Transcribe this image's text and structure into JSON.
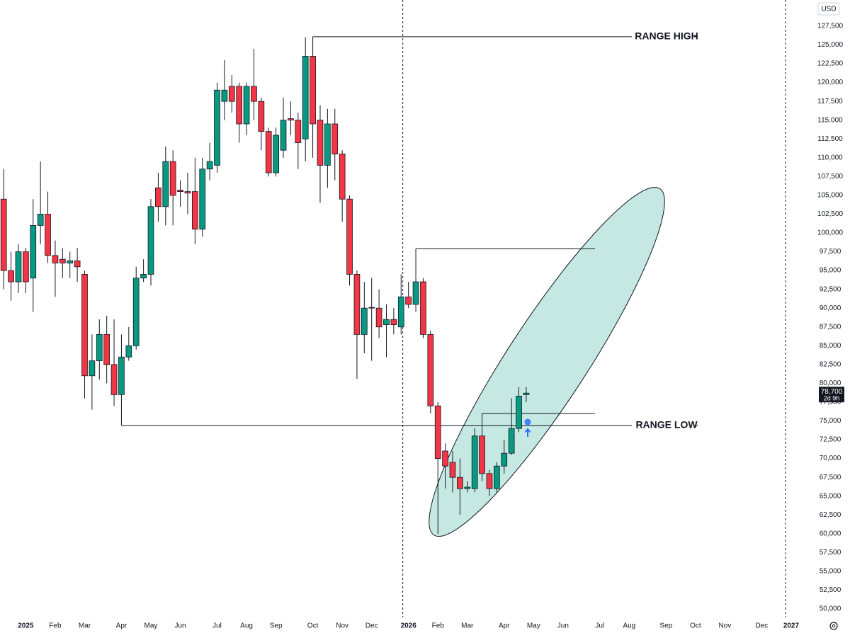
{
  "chart_data": {
    "type": "candlestick",
    "currency": "USD",
    "x": [
      -3,
      -2,
      -1,
      0,
      1,
      2,
      3,
      4,
      5,
      6,
      7,
      8,
      9,
      10,
      11,
      12,
      13,
      14,
      15,
      16,
      17,
      18,
      19,
      20,
      21,
      22,
      23,
      24,
      25,
      26,
      27,
      28,
      29,
      30,
      31,
      32,
      33,
      34,
      35,
      36,
      37,
      38,
      39,
      40,
      41,
      42,
      43,
      44,
      45,
      46,
      47,
      48,
      49,
      50,
      51,
      52,
      53,
      54,
      55,
      56,
      57,
      58,
      59,
      60,
      61,
      62,
      63,
      64,
      65,
      66,
      67,
      68
    ],
    "open": [
      104500,
      95000,
      93500,
      97500,
      94000,
      101000,
      102500,
      97000,
      96500,
      96000,
      96300,
      94500,
      81000,
      83000,
      86500,
      82500,
      78500,
      83500,
      85000,
      94000,
      94500,
      106000,
      103500,
      109500,
      105700,
      105500,
      105500,
      100500,
      108500,
      109000,
      117500,
      119500,
      119500,
      114500,
      119500,
      117500,
      113500,
      108000,
      111000,
      115200,
      115000,
      112500,
      123500,
      115000,
      109000,
      114500,
      110500,
      104500,
      94500,
      86500,
      90100,
      90000,
      87800,
      88500,
      87500,
      91500,
      90500,
      93500,
      86500,
      77000,
      71000,
      69500,
      67500,
      66000,
      66000,
      73000,
      68000,
      66000,
      69000,
      70700,
      74000,
      78500
    ],
    "high": [
      108500,
      97500,
      98500,
      98000,
      104500,
      109500,
      105500,
      99000,
      98000,
      97500,
      98000,
      95000,
      86500,
      88500,
      89000,
      88500,
      86500,
      87500,
      95500,
      96500,
      104500,
      108000,
      111500,
      111000,
      107000,
      108000,
      110000,
      110000,
      112000,
      120000,
      123000,
      121000,
      120000,
      120000,
      124500,
      118000,
      114000,
      114000,
      118000,
      117500,
      116000,
      126000,
      126100,
      117000,
      116500,
      116500,
      111000,
      105000,
      95000,
      93500,
      94000,
      92500,
      90500,
      90000,
      94500,
      93500,
      97900,
      94000,
      87000,
      77500,
      72000,
      71000,
      70000,
      67000,
      74000,
      76000,
      68500,
      69500,
      72500,
      78000,
      79500,
      79500
    ],
    "low": [
      92500,
      91000,
      92000,
      92000,
      89500,
      98500,
      96000,
      91500,
      94000,
      94000,
      93500,
      78000,
      76500,
      80500,
      80000,
      77000,
      74400,
      83000,
      84500,
      93500,
      93000,
      101500,
      101000,
      101000,
      103500,
      102500,
      98500,
      99500,
      107000,
      108000,
      115000,
      116000,
      112000,
      113000,
      115000,
      111000,
      107500,
      107500,
      110000,
      113000,
      108500,
      109500,
      110000,
      104000,
      106000,
      107000,
      101500,
      93000,
      80600,
      84000,
      83000,
      86000,
      83500,
      86500,
      86500,
      90000,
      89500,
      86000,
      76000,
      60000,
      66000,
      65500,
      62500,
      65500,
      65500,
      67000,
      65000,
      65500,
      68000,
      70500,
      73500,
      77500
    ],
    "close": [
      95000,
      93500,
      97500,
      93500,
      101000,
      102500,
      97000,
      96000,
      96000,
      96300,
      95500,
      81000,
      83000,
      86500,
      82500,
      78500,
      83500,
      85000,
      94000,
      94500,
      103500,
      103500,
      109500,
      105000,
      105500,
      105300,
      100500,
      108500,
      109500,
      119000,
      119000,
      117500,
      114500,
      119500,
      117500,
      113500,
      108000,
      113000,
      115000,
      115000,
      112000,
      123500,
      114500,
      109000,
      114500,
      110500,
      104500,
      94500,
      86500,
      90000,
      90000,
      87500,
      88500,
      87800,
      91500,
      90500,
      93500,
      86500,
      77000,
      70000,
      69000,
      67500,
      66000,
      66200,
      73000,
      68000,
      66000,
      69000,
      70700,
      74000,
      78300,
      78700
    ],
    "up_color": "#089981",
    "down_color": "#f23645",
    "xlim": [
      -3.5,
      106.7
    ],
    "xticks": [
      {
        "value": 0,
        "label": "2025"
      },
      {
        "value": 4,
        "label": "Feb"
      },
      {
        "value": 8,
        "label": "Mar"
      },
      {
        "value": 13,
        "label": "Apr"
      },
      {
        "value": 17,
        "label": "May"
      },
      {
        "value": 21,
        "label": "Jun"
      },
      {
        "value": 26,
        "label": "Jul"
      },
      {
        "value": 30,
        "label": "Aug"
      },
      {
        "value": 34,
        "label": "Sep"
      },
      {
        "value": 39,
        "label": "Oct"
      },
      {
        "value": 43,
        "label": "Nov"
      },
      {
        "value": 47,
        "label": "Dec"
      },
      {
        "value": 52,
        "label": "2026"
      },
      {
        "value": 56,
        "label": "Feb"
      },
      {
        "value": 60,
        "label": "Mar"
      },
      {
        "value": 65,
        "label": "Apr"
      },
      {
        "value": 69,
        "label": "May"
      },
      {
        "value": 73,
        "label": "Jun"
      },
      {
        "value": 78,
        "label": "Jul"
      },
      {
        "value": 82,
        "label": "Aug"
      },
      {
        "value": 87,
        "label": "Sep"
      },
      {
        "value": 91,
        "label": "Oct"
      },
      {
        "value": 95,
        "label": "Nov"
      },
      {
        "value": 100,
        "label": "Dec"
      },
      {
        "value": 104,
        "label": "2027"
      }
    ],
    "ylim": [
      48870,
      130980
    ],
    "yticks": [
      {
        "value": 50000,
        "label": "50,000"
      },
      {
        "value": 52500,
        "label": "52,500"
      },
      {
        "value": 55000,
        "label": "55,000"
      },
      {
        "value": 57500,
        "label": "57,500"
      },
      {
        "value": 60000,
        "label": "60,000"
      },
      {
        "value": 62500,
        "label": "62,500"
      },
      {
        "value": 65000,
        "label": "65,000"
      },
      {
        "value": 67500,
        "label": "67,500"
      },
      {
        "value": 70000,
        "label": "70,000"
      },
      {
        "value": 72500,
        "label": "72,500"
      },
      {
        "value": 75000,
        "label": "75,000"
      },
      {
        "value": 77500,
        "label": "77,500"
      },
      {
        "value": 80000,
        "label": "80,000"
      },
      {
        "value": 82500,
        "label": "82,500"
      },
      {
        "value": 85000,
        "label": "85,000"
      },
      {
        "value": 87500,
        "label": "87,500"
      },
      {
        "value": 90000,
        "label": "90,000"
      },
      {
        "value": 92500,
        "label": "92,500"
      },
      {
        "value": 95000,
        "label": "95,000"
      },
      {
        "value": 97500,
        "label": "97,500"
      },
      {
        "value": 100000,
        "label": "100,000"
      },
      {
        "value": 102500,
        "label": "102,500"
      },
      {
        "value": 105000,
        "label": "105,000"
      },
      {
        "value": 107500,
        "label": "107,500"
      },
      {
        "value": 110000,
        "label": "110,000"
      },
      {
        "value": 112500,
        "label": "112,500"
      },
      {
        "value": 115000,
        "label": "115,000"
      },
      {
        "value": 117500,
        "label": "117,500"
      },
      {
        "value": 120000,
        "label": "120,000"
      },
      {
        "value": 122500,
        "label": "122,500"
      },
      {
        "value": 125000,
        "label": "125,000"
      },
      {
        "value": 127500,
        "label": "127,500"
      }
    ],
    "grid": false,
    "annotations": [
      {
        "text": "RANGE HIGH",
        "value": 126100,
        "from": 39
      },
      {
        "text": "RANGE LOW",
        "value": 74400,
        "from": 13
      }
    ],
    "levels": [
      {
        "value": 97900,
        "from": 53
      },
      {
        "value": 76000,
        "from": 62
      }
    ],
    "last_price": {
      "value": 78700,
      "label": "78,700"
    },
    "countdown": "2d 9h"
  }
}
